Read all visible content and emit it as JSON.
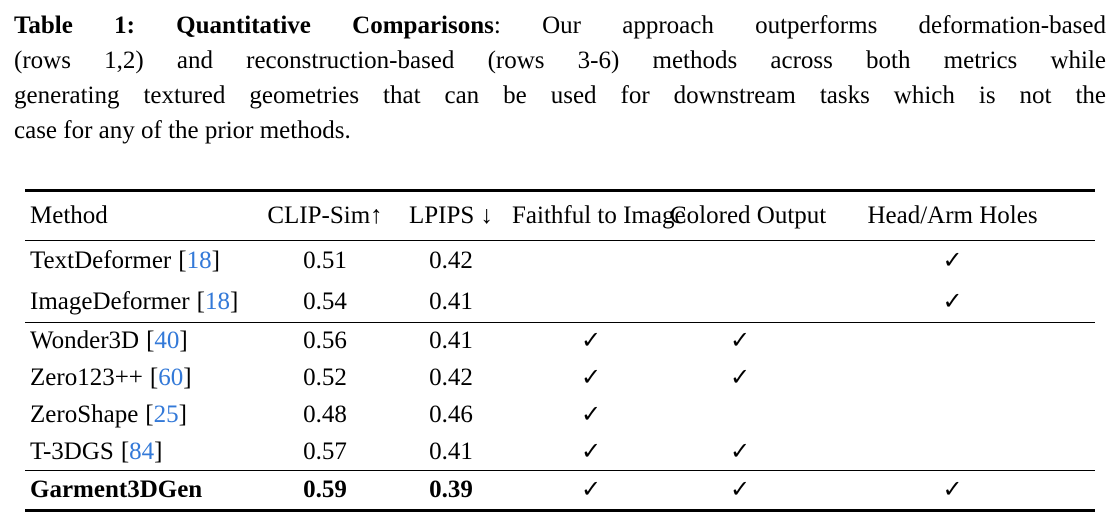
{
  "caption": {
    "title_bold": "Table 1: Quantitative Comparisons",
    "line1_rest": ": Our approach outperforms deformation-based",
    "line2": "(rows 1,2) and reconstruction-based (rows 3-6) methods across both metrics while",
    "line3": "generating textured geometries that can be used for downstream tasks which is not the",
    "line4": "case for any of the prior methods."
  },
  "colors": {
    "text": "#000000",
    "citation_link": "#3379d8",
    "rule": "#000000",
    "background": "#ffffff"
  },
  "table": {
    "headers": [
      "Method",
      "CLIP-Sim↑",
      "LPIPS ↓",
      "Faithful to Image",
      "Colored Output",
      "Head/Arm Holes"
    ],
    "rows": [
      {
        "method": "TextDeformer",
        "cite_open": "[",
        "cite": "18",
        "cite_close": "]",
        "clip_sim": "0.51",
        "lpips": "0.42",
        "faithful_to_image": "",
        "colored_output": "",
        "head_arm_holes": "✓"
      },
      {
        "method": "ImageDeformer",
        "cite_open": "[",
        "cite": "18",
        "cite_close": "]",
        "clip_sim": "0.54",
        "lpips": "0.41",
        "faithful_to_image": "",
        "colored_output": "",
        "head_arm_holes": "✓"
      },
      {
        "method": "Wonder3D",
        "cite_open": "[",
        "cite": "40",
        "cite_close": "]",
        "clip_sim": "0.56",
        "lpips": "0.41",
        "faithful_to_image": "✓",
        "colored_output": "✓",
        "head_arm_holes": ""
      },
      {
        "method": "Zero123++",
        "cite_open": "[",
        "cite": "60",
        "cite_close": "]",
        "clip_sim": "0.52",
        "lpips": "0.42",
        "faithful_to_image": "✓",
        "colored_output": "✓",
        "head_arm_holes": ""
      },
      {
        "method": "ZeroShape",
        "cite_open": "[",
        "cite": "25",
        "cite_close": "]",
        "clip_sim": "0.48",
        "lpips": "0.46",
        "faithful_to_image": "✓",
        "colored_output": "",
        "head_arm_holes": ""
      },
      {
        "method": "T-3DGS",
        "cite_open": "[",
        "cite": "84",
        "cite_close": "]",
        "clip_sim": "0.57",
        "lpips": "0.41",
        "faithful_to_image": "✓",
        "colored_output": "✓",
        "head_arm_holes": ""
      },
      {
        "method": "Garment3DGen",
        "cite_open": "",
        "cite": "",
        "cite_close": "",
        "clip_sim": "0.59",
        "lpips": "0.39",
        "faithful_to_image": "✓",
        "colored_output": "✓",
        "head_arm_holes": "✓"
      }
    ]
  }
}
